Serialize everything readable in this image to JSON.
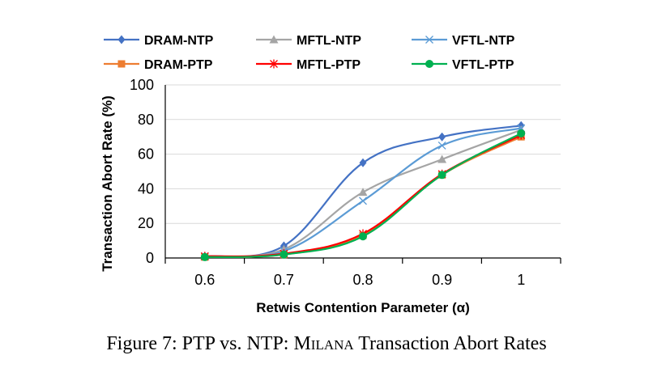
{
  "caption": {
    "prefix": "Figure 7: PTP vs. NTP: ",
    "name": "Milana",
    "suffix": " Transaction Abort Rates"
  },
  "chart_data": {
    "type": "line",
    "title": "",
    "xlabel": "Retwis Contention Parameter (α)",
    "ylabel": "Transaction Abort Rate (%)",
    "x": [
      0.6,
      0.7,
      0.8,
      0.9,
      1.0
    ],
    "x_tick_labels": [
      "0.6",
      "0.7",
      "0.8",
      "0.9",
      "1"
    ],
    "y_ticks": [
      0,
      20,
      40,
      60,
      80,
      100
    ],
    "y_tick_labels": [
      "0",
      "20",
      "40",
      "60",
      "80",
      "100"
    ],
    "xlim": [
      0.55,
      1.05
    ],
    "ylim": [
      0,
      100
    ],
    "grid": "horizontal",
    "legend_position": "top",
    "series": [
      {
        "name": "DRAM-NTP",
        "values": [
          1,
          7,
          55,
          70,
          76.5
        ],
        "color": "#4472c4",
        "marker": "diamond"
      },
      {
        "name": "MFTL-NTP",
        "values": [
          1,
          5,
          38,
          57,
          74
        ],
        "color": "#a5a5a5",
        "marker": "triangle"
      },
      {
        "name": "VFTL-NTP",
        "values": [
          1,
          4,
          33,
          65,
          75
        ],
        "color": "#5b9bd5",
        "marker": "x"
      },
      {
        "name": "DRAM-PTP",
        "values": [
          0.5,
          2,
          13,
          48,
          70
        ],
        "color": "#ed7d31",
        "marker": "square"
      },
      {
        "name": "MFTL-PTP",
        "values": [
          1,
          2.5,
          14,
          48.5,
          71
        ],
        "color": "#ff0000",
        "marker": "star"
      },
      {
        "name": "VFTL-PTP",
        "values": [
          0.5,
          2,
          12.5,
          48,
          72
        ],
        "color": "#00b050",
        "marker": "circle"
      }
    ]
  }
}
